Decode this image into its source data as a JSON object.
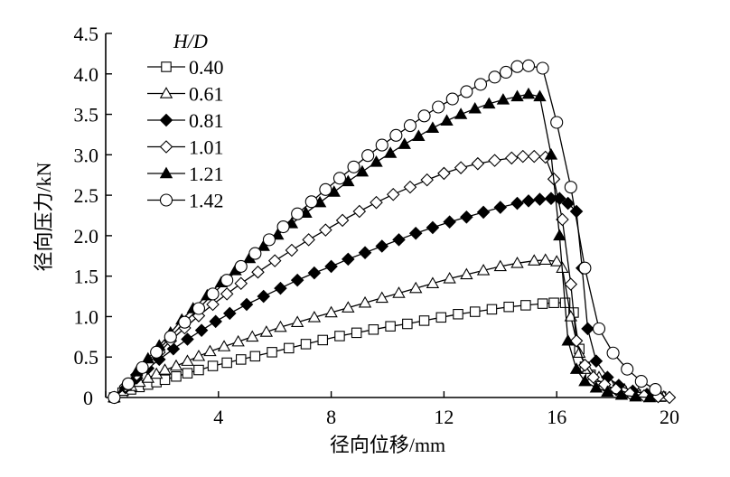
{
  "chart_data": {
    "type": "line",
    "xlabel": "径向位移/mm",
    "ylabel": "径向压力/kN",
    "xlim": [
      0,
      20
    ],
    "ylim": [
      0,
      4.5
    ],
    "xticks": [
      0,
      4,
      8,
      12,
      16,
      20
    ],
    "yticks": [
      0.5,
      1.0,
      1.5,
      2.0,
      2.5,
      3.0,
      3.5,
      4.0,
      4.5
    ],
    "ytick_labels": [
      "0.5",
      "1.0",
      "1.5",
      "2.0",
      "2.5",
      "3.0",
      "3.5",
      "4.0",
      "4.5"
    ],
    "origin_label": "0",
    "grid": false,
    "legend": {
      "title": "H/D",
      "position": "top-left"
    },
    "series": [
      {
        "name": "0.40",
        "marker": "square-open",
        "x": [
          0.3,
          0.6,
          0.9,
          1.2,
          1.5,
          1.8,
          2.1,
          2.5,
          2.9,
          3.3,
          3.8,
          4.3,
          4.8,
          5.3,
          5.9,
          6.5,
          7.1,
          7.7,
          8.3,
          8.9,
          9.5,
          10.1,
          10.7,
          11.3,
          11.9,
          12.5,
          13.1,
          13.7,
          14.3,
          14.9,
          15.5,
          15.9,
          16.3,
          16.6,
          16.8,
          17.0,
          17.2,
          17.5,
          17.9,
          18.3,
          18.8,
          19.3,
          19.7
        ],
        "y": [
          0.0,
          0.06,
          0.1,
          0.13,
          0.16,
          0.19,
          0.22,
          0.26,
          0.3,
          0.34,
          0.39,
          0.43,
          0.47,
          0.51,
          0.56,
          0.61,
          0.66,
          0.71,
          0.76,
          0.8,
          0.84,
          0.88,
          0.91,
          0.95,
          0.99,
          1.03,
          1.06,
          1.09,
          1.12,
          1.14,
          1.16,
          1.17,
          1.17,
          1.05,
          0.6,
          0.38,
          0.28,
          0.2,
          0.13,
          0.08,
          0.04,
          0.02,
          0.01
        ]
      },
      {
        "name": "0.61",
        "marker": "triangle-open",
        "x": [
          0.3,
          0.6,
          0.9,
          1.2,
          1.5,
          1.8,
          2.1,
          2.5,
          2.9,
          3.3,
          3.7,
          4.2,
          4.7,
          5.2,
          5.7,
          6.2,
          6.8,
          7.4,
          8.0,
          8.6,
          9.2,
          9.8,
          10.4,
          11.0,
          11.6,
          12.2,
          12.8,
          13.4,
          14.0,
          14.6,
          15.2,
          15.6,
          16.0,
          16.2,
          16.5,
          16.8,
          17.1,
          17.5,
          17.9,
          18.4,
          18.9,
          19.4,
          19.8
        ],
        "y": [
          0.0,
          0.08,
          0.14,
          0.19,
          0.24,
          0.29,
          0.34,
          0.39,
          0.45,
          0.51,
          0.57,
          0.63,
          0.69,
          0.75,
          0.81,
          0.87,
          0.93,
          0.99,
          1.05,
          1.11,
          1.17,
          1.23,
          1.29,
          1.35,
          1.41,
          1.47,
          1.52,
          1.57,
          1.62,
          1.66,
          1.69,
          1.7,
          1.68,
          1.6,
          1.0,
          0.55,
          0.35,
          0.25,
          0.17,
          0.1,
          0.05,
          0.02,
          0.01
        ]
      },
      {
        "name": "0.81",
        "marker": "diamond-filled",
        "x": [
          0.3,
          0.7,
          1.1,
          1.5,
          1.9,
          2.4,
          2.9,
          3.4,
          3.9,
          4.4,
          5.0,
          5.6,
          6.2,
          6.8,
          7.4,
          8.0,
          8.6,
          9.2,
          9.8,
          10.4,
          11.0,
          11.6,
          12.2,
          12.8,
          13.4,
          14.0,
          14.6,
          15.0,
          15.4,
          15.8,
          16.1,
          16.4,
          16.7,
          16.9,
          17.1,
          17.4,
          17.8,
          18.2,
          18.7,
          19.2,
          19.6
        ],
        "y": [
          0.0,
          0.12,
          0.24,
          0.36,
          0.47,
          0.6,
          0.72,
          0.83,
          0.94,
          1.04,
          1.15,
          1.25,
          1.35,
          1.45,
          1.54,
          1.62,
          1.71,
          1.79,
          1.87,
          1.95,
          2.03,
          2.1,
          2.17,
          2.23,
          2.29,
          2.35,
          2.4,
          2.43,
          2.45,
          2.46,
          2.46,
          2.4,
          2.3,
          1.6,
          0.85,
          0.45,
          0.25,
          0.15,
          0.08,
          0.04,
          0.02
        ]
      },
      {
        "name": "1.01",
        "marker": "diamond-open",
        "x": [
          0.3,
          0.7,
          1.1,
          1.5,
          1.9,
          2.3,
          2.8,
          3.3,
          3.8,
          4.3,
          4.8,
          5.4,
          6.0,
          6.6,
          7.2,
          7.8,
          8.4,
          9.0,
          9.6,
          10.2,
          10.8,
          11.4,
          12.0,
          12.6,
          13.2,
          13.8,
          14.4,
          14.8,
          15.2,
          15.6,
          15.9,
          16.2,
          16.5,
          16.7,
          17.0,
          17.3,
          17.7,
          18.1,
          18.6,
          19.1,
          19.6,
          20.0
        ],
        "y": [
          0.0,
          0.14,
          0.28,
          0.42,
          0.56,
          0.7,
          0.86,
          1.01,
          1.15,
          1.28,
          1.41,
          1.55,
          1.69,
          1.82,
          1.95,
          2.07,
          2.19,
          2.3,
          2.41,
          2.51,
          2.6,
          2.69,
          2.77,
          2.84,
          2.89,
          2.93,
          2.96,
          2.98,
          2.98,
          2.97,
          2.7,
          2.2,
          1.4,
          0.7,
          0.4,
          0.25,
          0.16,
          0.1,
          0.05,
          0.02,
          0.01,
          0.0
        ]
      },
      {
        "name": "1.21",
        "marker": "triangle-filled",
        "x": [
          0.3,
          0.7,
          1.1,
          1.5,
          1.9,
          2.3,
          2.7,
          3.1,
          3.6,
          4.1,
          4.6,
          5.1,
          5.6,
          6.1,
          6.6,
          7.1,
          7.6,
          8.1,
          8.6,
          9.1,
          9.6,
          10.1,
          10.6,
          11.1,
          11.6,
          12.1,
          12.6,
          13.1,
          13.6,
          14.1,
          14.6,
          15.0,
          15.4,
          15.8,
          16.1,
          16.4,
          16.7,
          17.0,
          17.4,
          17.8,
          18.3,
          18.8,
          19.3
        ],
        "y": [
          0.0,
          0.15,
          0.32,
          0.48,
          0.64,
          0.8,
          0.96,
          1.1,
          1.26,
          1.42,
          1.57,
          1.72,
          1.87,
          2.01,
          2.15,
          2.28,
          2.41,
          2.54,
          2.67,
          2.79,
          2.91,
          3.02,
          3.13,
          3.23,
          3.33,
          3.42,
          3.5,
          3.57,
          3.63,
          3.68,
          3.72,
          3.75,
          3.72,
          3.0,
          2.0,
          0.7,
          0.35,
          0.2,
          0.12,
          0.07,
          0.03,
          0.01,
          0.0
        ]
      },
      {
        "name": "1.42",
        "marker": "circle-open",
        "x": [
          0.3,
          0.8,
          1.3,
          1.8,
          2.3,
          2.8,
          3.3,
          3.8,
          4.3,
          4.8,
          5.3,
          5.8,
          6.3,
          6.8,
          7.3,
          7.8,
          8.3,
          8.8,
          9.3,
          9.8,
          10.3,
          10.8,
          11.3,
          11.8,
          12.3,
          12.8,
          13.3,
          13.8,
          14.2,
          14.6,
          15.0,
          15.5,
          16.0,
          16.5,
          17.0,
          17.5,
          18.0,
          18.5,
          19.0,
          19.5
        ],
        "y": [
          0.0,
          0.17,
          0.37,
          0.56,
          0.75,
          0.93,
          1.1,
          1.28,
          1.45,
          1.62,
          1.78,
          1.95,
          2.11,
          2.27,
          2.42,
          2.57,
          2.71,
          2.85,
          2.99,
          3.12,
          3.24,
          3.36,
          3.48,
          3.59,
          3.69,
          3.78,
          3.87,
          3.96,
          4.02,
          4.09,
          4.1,
          4.07,
          3.4,
          2.6,
          1.6,
          0.85,
          0.55,
          0.35,
          0.2,
          0.1
        ]
      }
    ]
  }
}
